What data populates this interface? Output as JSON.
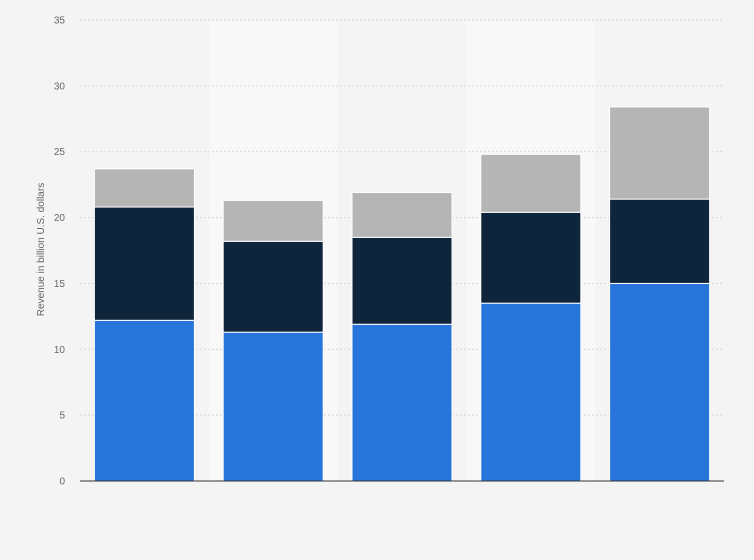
{
  "chart_data": {
    "type": "bar",
    "stacked": true,
    "categories": [
      "",
      "",
      "",
      "",
      ""
    ],
    "series": [
      {
        "values": [
          12.2,
          11.3,
          11.9,
          13.5,
          15.0
        ],
        "color": "#2775db"
      },
      {
        "values": [
          8.6,
          6.9,
          6.6,
          6.9,
          6.4
        ],
        "color": "#0f253b"
      },
      {
        "values": [
          2.9,
          3.1,
          3.4,
          4.4,
          7.0
        ],
        "color": "#b5b5b5"
      }
    ],
    "totals": [
      23.7,
      21.3,
      21.9,
      24.8,
      28.4
    ],
    "title": "",
    "xlabel": "",
    "ylabel": "Revenue in billion U.S. dollars",
    "ylim": [
      0,
      35
    ],
    "yticks": [
      0,
      5,
      10,
      15,
      20,
      25,
      30,
      35
    ],
    "grid": true,
    "legend": "none",
    "colors": {
      "background": "#f4f4f4",
      "band": "#f8f8f8",
      "grid": "#d6d6d6",
      "axis": "#333333"
    }
  }
}
